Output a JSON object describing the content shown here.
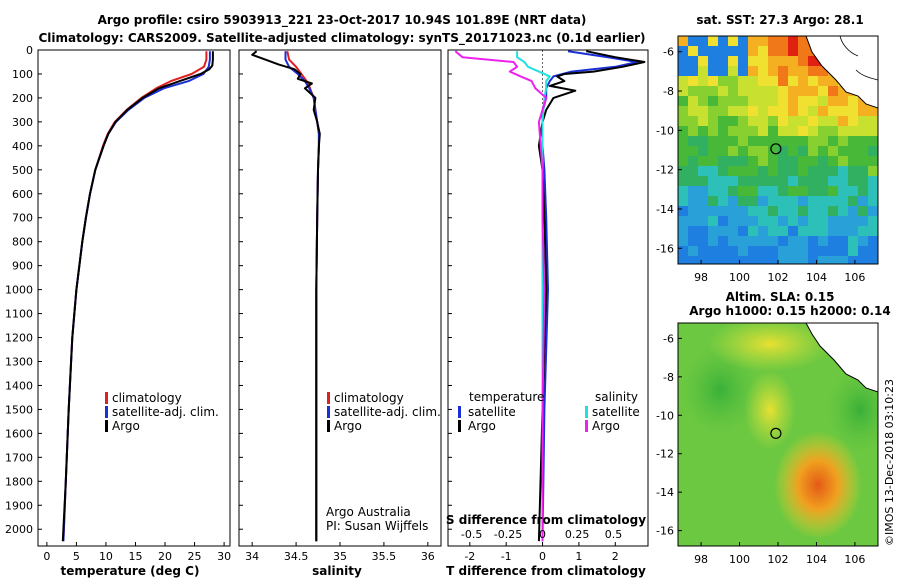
{
  "title": {
    "line1": "Argo profile: csiro 5903913_221 23-Oct-2017 10.94S 101.89E (NRT data)",
    "line2": "Climatology: CARS2009. Satellite-adjusted climatology: synTS_20171023.nc (0.1d earlier)"
  },
  "credit_side": "©IMOS 13-Dec-2018 03:10:23",
  "colors": {
    "argo": "#000000",
    "climatology": "#e02020",
    "satellite": "#1a2fd6",
    "satellite_salinity": "#22e0e0",
    "argo_salinity": "#ee22ee"
  },
  "chart_data": [
    {
      "type": "line",
      "panel": "temperature",
      "xlabel": "temperature (deg C)",
      "ylabel": "",
      "xlim": [
        -1.5,
        31
      ],
      "ylim": [
        2070,
        0
      ],
      "x_ticks": [
        0,
        5,
        10,
        15,
        20,
        25,
        30
      ],
      "y_ticks": [
        0,
        100,
        200,
        300,
        400,
        500,
        600,
        700,
        800,
        900,
        1000,
        1100,
        1200,
        1300,
        1400,
        1500,
        1600,
        1700,
        1800,
        1900,
        2000
      ],
      "legend": [
        "climatology",
        "satellite-adj. clim.",
        "Argo"
      ],
      "series": [
        {
          "name": "climatology",
          "depth": [
            5,
            40,
            70,
            100,
            130,
            160,
            200,
            250,
            300,
            350,
            400,
            500,
            600,
            700,
            800,
            1000,
            1200,
            1500,
            1800,
            2050
          ],
          "values": [
            27.0,
            27.0,
            26.6,
            24.5,
            21.0,
            18.5,
            16.0,
            13.5,
            11.5,
            10.3,
            9.5,
            8.2,
            7.3,
            6.6,
            6.0,
            5.0,
            4.3,
            3.7,
            3.2,
            2.8
          ]
        },
        {
          "name": "satellite-adj. clim.",
          "depth": [
            5,
            40,
            70,
            100,
            130,
            160,
            200,
            250,
            300,
            350,
            400,
            500,
            600,
            700,
            800,
            1000,
            1200,
            1500,
            1800,
            2050
          ],
          "values": [
            27.6,
            27.6,
            27.4,
            26.5,
            24.0,
            19.8,
            16.5,
            13.8,
            11.7,
            10.4,
            9.6,
            8.2,
            7.3,
            6.6,
            6.0,
            5.0,
            4.3,
            3.7,
            3.2,
            2.8
          ]
        },
        {
          "name": "Argo",
          "depth": [
            5,
            40,
            65,
            80,
            100,
            130,
            160,
            200,
            250,
            300,
            350,
            400,
            500,
            600,
            700,
            800,
            1000,
            1200,
            1500,
            1800,
            2050
          ],
          "values": [
            28.1,
            28.1,
            28.0,
            27.5,
            26.0,
            22.5,
            19.0,
            16.2,
            13.6,
            11.6,
            10.4,
            9.6,
            8.2,
            7.3,
            6.6,
            6.0,
            5.0,
            4.3,
            3.7,
            3.2,
            2.7
          ]
        }
      ]
    },
    {
      "type": "line",
      "panel": "salinity",
      "xlabel": "salinity",
      "xlim": [
        33.85,
        36.15
      ],
      "ylim": [
        2070,
        0
      ],
      "x_ticks": [
        34,
        34.5,
        35,
        35.5,
        36
      ],
      "legend": [
        "climatology",
        "satellite-adj. clim.",
        "Argo"
      ],
      "annotation": [
        "Argo Australia",
        "PI: Susan Wijffels"
      ],
      "series": [
        {
          "name": "climatology",
          "depth": [
            5,
            40,
            70,
            100,
            130,
            160,
            200,
            250,
            300,
            350,
            400,
            500,
            700,
            1000,
            1500,
            2050
          ],
          "values": [
            34.4,
            34.42,
            34.5,
            34.56,
            34.62,
            34.66,
            34.7,
            34.72,
            34.74,
            34.76,
            34.76,
            34.75,
            34.74,
            34.73,
            34.73,
            34.73
          ]
        },
        {
          "name": "satellite-adj. clim.",
          "depth": [
            5,
            40,
            70,
            100,
            130,
            160,
            200,
            250,
            300,
            350,
            400,
            500,
            700,
            1000,
            1500,
            2050
          ],
          "values": [
            34.38,
            34.38,
            34.42,
            34.52,
            34.6,
            34.65,
            34.7,
            34.72,
            34.74,
            34.76,
            34.76,
            34.75,
            34.74,
            34.73,
            34.73,
            34.73
          ]
        },
        {
          "name": "Argo",
          "depth": [
            5,
            20,
            40,
            60,
            80,
            100,
            120,
            140,
            160,
            200,
            250,
            300,
            350,
            400,
            500,
            700,
            1000,
            1500,
            2050
          ],
          "values": [
            34.05,
            34.0,
            34.15,
            34.3,
            34.48,
            34.55,
            34.52,
            34.68,
            34.6,
            34.72,
            34.7,
            34.74,
            34.77,
            34.76,
            34.75,
            34.74,
            34.73,
            34.73,
            34.73
          ]
        }
      ]
    },
    {
      "type": "line",
      "panel": "difference",
      "xlabel": "T difference from climatology",
      "xlabel2": "S difference from climatology",
      "xlim": [
        -2.6,
        2.9
      ],
      "ylim": [
        2070,
        0
      ],
      "x_ticks": [
        -2,
        -1,
        0,
        1,
        2
      ],
      "x_ticks_s": [
        "-0.5",
        "-0.25",
        "0",
        "0.25",
        "0.5"
      ],
      "x_ticks_s_pos": [
        -1.95,
        -0.95,
        0.0,
        0.95,
        1.95
      ],
      "legend_left_title": "temperature",
      "legend_right_title": "salinity",
      "legend_left": [
        "satellite",
        "Argo"
      ],
      "legend_right": [
        "satellite",
        "Argo"
      ],
      "series": [
        {
          "name": "satellite",
          "depth": [
            5,
            30,
            50,
            70,
            90,
            110,
            130,
            160,
            200,
            260,
            300,
            400,
            500,
            700,
            1000,
            1500,
            2050
          ],
          "values": [
            0.7,
            1.8,
            2.6,
            2.0,
            0.8,
            0.3,
            0.2,
            0.1,
            0.1,
            0.0,
            0.0,
            0.0,
            0.05,
            0.1,
            0.15,
            0.05,
            0.0
          ]
        },
        {
          "name": "Argo",
          "depth": [
            5,
            30,
            50,
            70,
            90,
            100,
            110,
            130,
            150,
            170,
            200,
            250,
            300,
            400,
            500,
            700,
            1000,
            1500,
            2050
          ],
          "values": [
            1.2,
            2.0,
            2.8,
            2.2,
            1.4,
            0.6,
            0.4,
            0.6,
            0.2,
            0.9,
            0.3,
            0.1,
            0.0,
            -0.1,
            0.0,
            0.05,
            0.1,
            0.0,
            -0.1
          ]
        },
        {
          "name": "satellite",
          "depth": [
            5,
            30,
            50,
            70,
            90,
            110,
            130,
            160,
            200,
            300,
            400,
            500,
            700,
            1000,
            1500,
            2050
          ],
          "values": [
            -0.7,
            -0.7,
            -0.5,
            -0.4,
            -0.1,
            0.2,
            0.1,
            0.1,
            0.05,
            0.0,
            0.0,
            0.0,
            0.0,
            0.0,
            0.0,
            0.0
          ]
        },
        {
          "name": "Argo",
          "depth": [
            5,
            30,
            50,
            70,
            90,
            110,
            130,
            160,
            200,
            250,
            300,
            400,
            500,
            700,
            1000,
            1500,
            2050
          ],
          "values": [
            -2.4,
            -2.2,
            -0.8,
            -0.7,
            -0.9,
            -0.6,
            -0.3,
            -0.2,
            0.1,
            0.0,
            -0.1,
            -0.05,
            0.0,
            0.0,
            0.05,
            0.0,
            0.0
          ]
        }
      ]
    },
    {
      "type": "heatmap",
      "panel": "sst-map",
      "title": "sat. SST: 27.3 Argo: 28.1",
      "xlim": [
        96.8,
        107.2
      ],
      "ylim": [
        -16.8,
        -5.2
      ],
      "x_ticks": [
        98,
        100,
        102,
        104,
        106
      ],
      "y_ticks": [
        -6,
        -8,
        -10,
        -12,
        -14,
        -16
      ],
      "float_position": {
        "lon": 101.89,
        "lat": -10.94
      }
    },
    {
      "type": "heatmap",
      "panel": "sla-map",
      "title": "Altim. SLA: 0.15",
      "subtitle": "Argo h1000: 0.15 h2000: 0.14",
      "xlim": [
        96.8,
        107.2
      ],
      "ylim": [
        -16.8,
        -5.2
      ],
      "x_ticks": [
        98,
        100,
        102,
        104,
        106
      ],
      "y_ticks": [
        -6,
        -8,
        -10,
        -12,
        -14,
        -16
      ],
      "float_position": {
        "lon": 101.89,
        "lat": -10.94
      }
    }
  ]
}
